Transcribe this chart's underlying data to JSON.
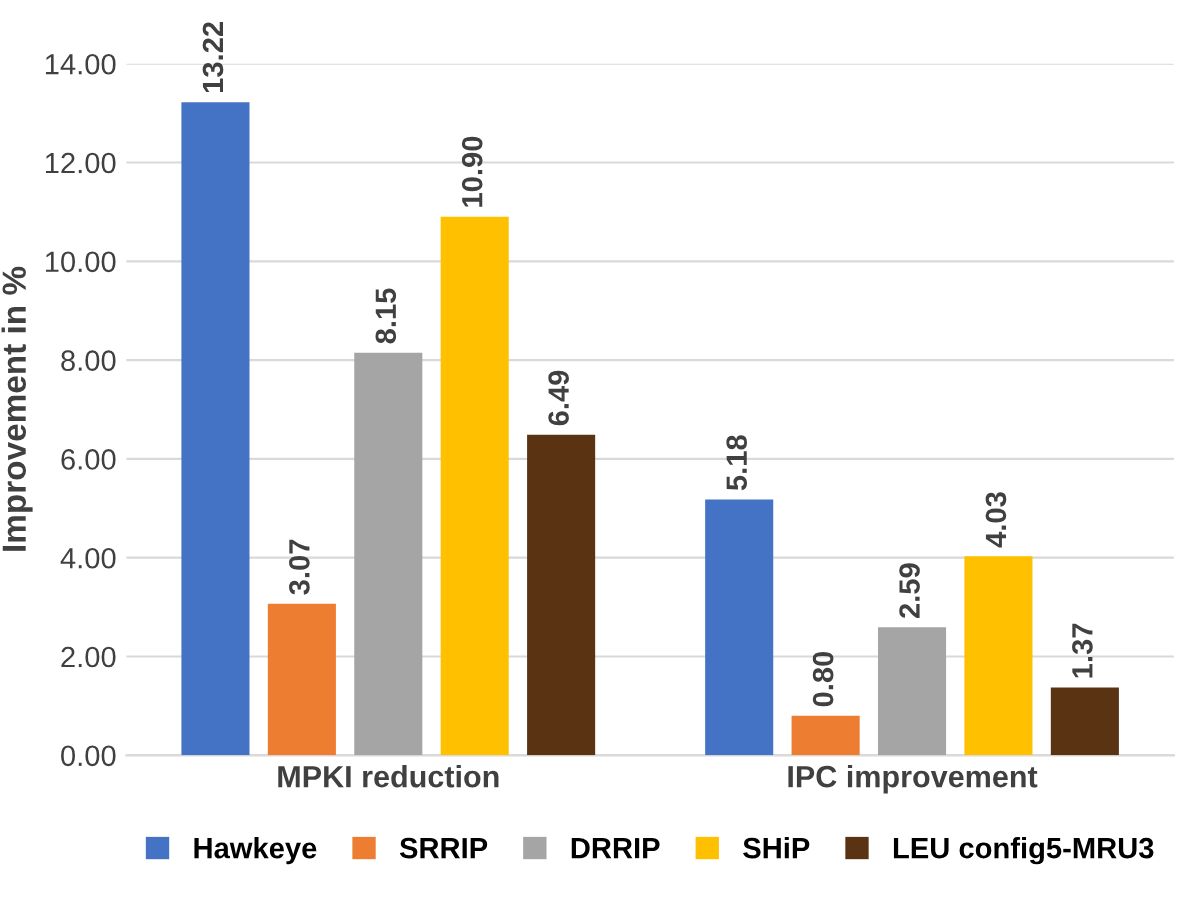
{
  "chart_data": {
    "type": "bar",
    "ylabel": "Improvement in %",
    "categories": [
      "MPKI reduction",
      "IPC improvement"
    ],
    "series": [
      {
        "name": "Hawkeye",
        "color": "#4472c4",
        "values": [
          13.22,
          5.18
        ],
        "value_labels": [
          "13.22",
          "5.18"
        ]
      },
      {
        "name": "SRRIP",
        "color": "#ed7d31",
        "values": [
          3.07,
          0.8
        ],
        "value_labels": [
          "3.07",
          "0.80"
        ]
      },
      {
        "name": "DRRIP",
        "color": "#a5a5a5",
        "values": [
          8.15,
          2.59
        ],
        "value_labels": [
          "8.15",
          "2.59"
        ]
      },
      {
        "name": "SHiP",
        "color": "#ffc000",
        "values": [
          10.9,
          4.03
        ],
        "value_labels": [
          "10.90",
          "4.03"
        ]
      },
      {
        "name": "LEU config5-MRU3",
        "color": "#5a3412",
        "values": [
          6.49,
          1.37
        ],
        "value_labels": [
          "6.49",
          "1.37"
        ]
      }
    ],
    "ylim": [
      0,
      14
    ],
    "yticks": [
      {
        "value": 0,
        "label": "0.00"
      },
      {
        "value": 2,
        "label": "2.00"
      },
      {
        "value": 4,
        "label": "4.00"
      },
      {
        "value": 6,
        "label": "6.00"
      },
      {
        "value": 8,
        "label": "8.00"
      },
      {
        "value": 10,
        "label": "10.00"
      },
      {
        "value": 12,
        "label": "12.00"
      },
      {
        "value": 14,
        "label": "14.00"
      }
    ],
    "grid": "y",
    "legend": "bottom"
  }
}
